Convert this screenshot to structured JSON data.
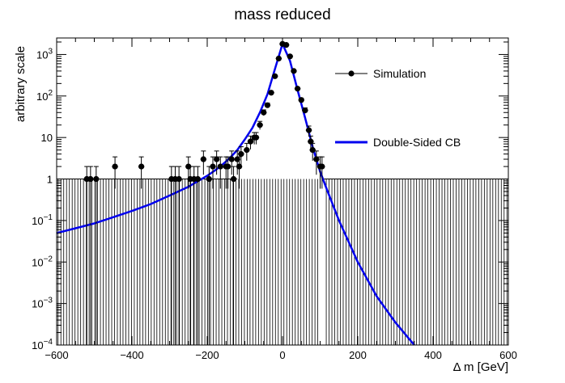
{
  "chart_data": {
    "type": "scatter",
    "title": "mass reduced",
    "xlabel": "Δ m [GeV]",
    "ylabel": "arbitrary scale",
    "xlim": [
      -600,
      600
    ],
    "ylim": [
      0.0001,
      2500
    ],
    "yscale": "log",
    "x_ticks": [
      -600,
      -400,
      -200,
      0,
      200,
      400,
      600
    ],
    "y_ticks": [
      {
        "value": 0.0001,
        "base": "10",
        "exp": "−4"
      },
      {
        "value": 0.001,
        "base": "10",
        "exp": "−3"
      },
      {
        "value": 0.01,
        "base": "10",
        "exp": "−2"
      },
      {
        "value": 0.1,
        "base": "10",
        "exp": "−1"
      },
      {
        "value": 1,
        "base": "1",
        "exp": ""
      },
      {
        "value": 10,
        "base": "10",
        "exp": ""
      },
      {
        "value": 100,
        "base": "10",
        "exp": "2"
      },
      {
        "value": 1000,
        "base": "10",
        "exp": "3"
      }
    ],
    "grid": false,
    "legend_position": "top-right",
    "series": [
      {
        "name": "Simulation",
        "kind": "points_with_errors",
        "color": "#000000",
        "x": [
          -520,
          -510,
          -495,
          -445,
          -375,
          -295,
          -285,
          -275,
          -250,
          -245,
          -235,
          -225,
          -210,
          -195,
          -185,
          -175,
          -165,
          -150,
          -145,
          -135,
          -130,
          -120,
          -115,
          -110,
          -95,
          -85,
          -75,
          -70,
          -60,
          -50,
          -40,
          -30,
          -20,
          -10,
          0,
          10,
          20,
          30,
          40,
          50,
          60,
          70,
          75,
          80,
          90,
          100,
          105
        ],
        "y": [
          1,
          1,
          1,
          2,
          2,
          1,
          1,
          1,
          2,
          1,
          1,
          1,
          3,
          1,
          2,
          3,
          2,
          2,
          2,
          3,
          1,
          3,
          2,
          4,
          5,
          8,
          10,
          10,
          20,
          40,
          60,
          120,
          300,
          800,
          1800,
          1700,
          900,
          400,
          150,
          80,
          45,
          15,
          8,
          5,
          3,
          2,
          2
        ]
      },
      {
        "name": "Double-Sided CB",
        "kind": "line",
        "color": "#0000ee",
        "x": [
          -600,
          -550,
          -500,
          -450,
          -400,
          -350,
          -300,
          -250,
          -200,
          -180,
          -160,
          -140,
          -120,
          -100,
          -80,
          -60,
          -40,
          -20,
          0,
          20,
          40,
          60,
          80,
          100,
          120,
          150,
          200,
          250,
          300,
          350
        ],
        "y": [
          0.05,
          0.065,
          0.085,
          0.12,
          0.17,
          0.25,
          0.4,
          0.65,
          1.2,
          1.6,
          2.2,
          3.2,
          5,
          9,
          17,
          40,
          110,
          450,
          1800,
          700,
          140,
          30,
          6,
          1.5,
          0.5,
          0.1,
          0.01,
          0.0015,
          0.00035,
          0.0001
        ]
      }
    ],
    "empty_bins": {
      "step": 7.5,
      "value": 1,
      "fill_right_from": 110,
      "fill_left_to": 100
    }
  }
}
